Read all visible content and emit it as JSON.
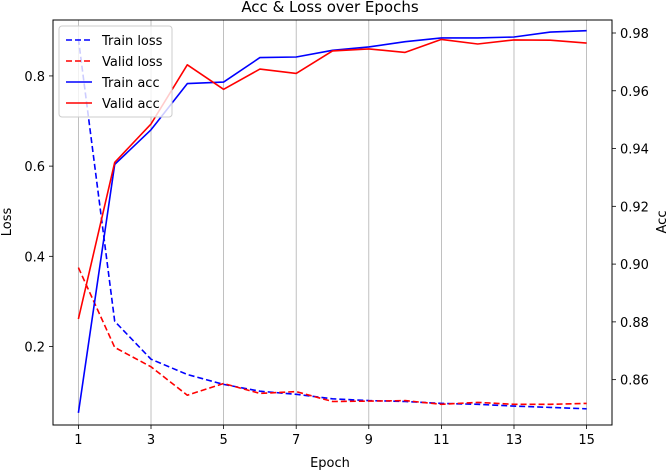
{
  "chart_data": {
    "type": "line",
    "title": "Acc & Loss over Epochs",
    "xlabel": "Epoch",
    "ylabel_left": "Loss",
    "ylabel_right": "Acc",
    "x": [
      1,
      2,
      3,
      4,
      5,
      6,
      7,
      8,
      9,
      10,
      11,
      12,
      13,
      14,
      15
    ],
    "x_ticks": [
      1,
      3,
      5,
      7,
      9,
      11,
      13,
      15
    ],
    "xlim": [
      0.3,
      15.7
    ],
    "y_left_lim": [
      0.026,
      0.924
    ],
    "y_left_ticks": [
      0.2,
      0.4,
      0.6,
      0.8
    ],
    "y_right_lim": [
      0.8443,
      0.9845
    ],
    "y_right_ticks": [
      0.86,
      0.88,
      0.9,
      0.92,
      0.94,
      0.96,
      0.98
    ],
    "grid": "vertical",
    "legend_position": "upper left",
    "series": [
      {
        "name": "Train loss",
        "axis": "left",
        "color": "#0000ff",
        "dashed": true,
        "values": [
          0.882,
          0.256,
          0.172,
          0.138,
          0.116,
          0.101,
          0.094,
          0.084,
          0.08,
          0.078,
          0.074,
          0.072,
          0.068,
          0.065,
          0.062
        ]
      },
      {
        "name": "Valid loss",
        "axis": "left",
        "color": "#ff0000",
        "dashed": true,
        "values": [
          0.375,
          0.198,
          0.155,
          0.092,
          0.118,
          0.096,
          0.1,
          0.078,
          0.079,
          0.08,
          0.072,
          0.076,
          0.072,
          0.072,
          0.074
        ]
      },
      {
        "name": "Train acc",
        "axis": "right",
        "color": "#0000ff",
        "dashed": false,
        "values": [
          0.8485,
          0.9345,
          0.9465,
          0.9625,
          0.963,
          0.9715,
          0.9717,
          0.974,
          0.9752,
          0.977,
          0.9783,
          0.9783,
          0.9786,
          0.9803,
          0.9808
        ]
      },
      {
        "name": "Valid acc",
        "axis": "right",
        "color": "#ff0000",
        "dashed": false,
        "values": [
          0.881,
          0.9352,
          0.9485,
          0.969,
          0.9605,
          0.9675,
          0.966,
          0.9738,
          0.9745,
          0.9733,
          0.9778,
          0.9762,
          0.9776,
          0.9775,
          0.9765
        ]
      }
    ]
  }
}
